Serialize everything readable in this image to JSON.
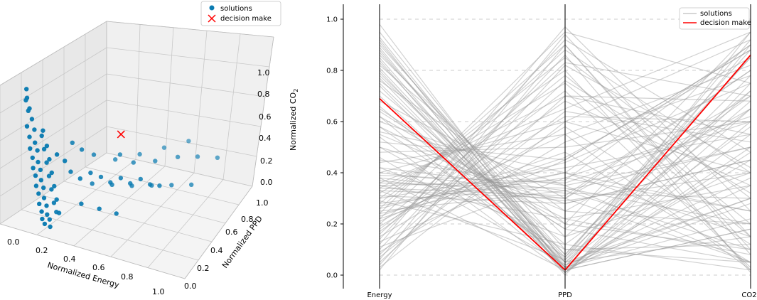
{
  "figure": {
    "left_chart": {
      "type": "scatter",
      "xlabel": "Normalized Energy",
      "ylabel": "Normalized PPD",
      "zlabel_prefix": "Normalized CO",
      "zlabel_sub": "2",
      "x_ticks": [
        "0.0",
        "0.2",
        "0.4",
        "0.6",
        "0.8",
        "1.0"
      ],
      "y_ticks": [
        "0.0",
        "0.2",
        "0.4",
        "0.6",
        "0.8",
        "1.0"
      ],
      "z_ticks": [
        "0.0",
        "0.2",
        "0.4",
        "0.6",
        "0.8",
        "1.0"
      ],
      "legend": {
        "solutions": "solutions",
        "decision": "decision make"
      },
      "colors": {
        "solutions": "#0a7bb1",
        "decision": "#ff0000"
      }
    },
    "right_chart": {
      "type": "line",
      "axes": [
        "Energy",
        "PPD",
        "CO2"
      ],
      "y_ticks": [
        "0.0",
        "0.2",
        "0.4",
        "0.6",
        "0.8",
        "1.0"
      ],
      "legend": {
        "solutions": "solutions",
        "decision": "decision make"
      },
      "colors": {
        "solutions": "#999999",
        "decision": "#ff0000"
      }
    }
  },
  "chart_data": [
    {
      "type": "scatter",
      "title": "",
      "xlabel": "Normalized Energy",
      "ylabel": "Normalized PPD",
      "zlabel": "Normalized CO2",
      "xlim": [
        0,
        1
      ],
      "ylim": [
        0,
        1
      ],
      "zlim": [
        0,
        1
      ],
      "series": [
        {
          "name": "solutions",
          "points": [
            [
              0.05,
              0.05,
              0.95
            ],
            [
              0.06,
              0.04,
              0.9
            ],
            [
              0.04,
              0.06,
              0.86
            ],
            [
              0.07,
              0.05,
              0.82
            ],
            [
              0.05,
              0.07,
              0.78
            ],
            [
              0.08,
              0.06,
              0.74
            ],
            [
              0.06,
              0.04,
              0.7
            ],
            [
              0.09,
              0.07,
              0.66
            ],
            [
              0.07,
              0.05,
              0.62
            ],
            [
              0.1,
              0.06,
              0.58
            ],
            [
              0.08,
              0.04,
              0.55
            ],
            [
              0.11,
              0.07,
              0.52
            ],
            [
              0.09,
              0.05,
              0.48
            ],
            [
              0.12,
              0.06,
              0.45
            ],
            [
              0.1,
              0.04,
              0.42
            ],
            [
              0.13,
              0.07,
              0.39
            ],
            [
              0.11,
              0.05,
              0.36
            ],
            [
              0.14,
              0.06,
              0.33
            ],
            [
              0.12,
              0.04,
              0.3
            ],
            [
              0.15,
              0.07,
              0.27
            ],
            [
              0.13,
              0.05,
              0.24
            ],
            [
              0.16,
              0.06,
              0.21
            ],
            [
              0.14,
              0.04,
              0.18
            ],
            [
              0.17,
              0.07,
              0.15
            ],
            [
              0.15,
              0.05,
              0.12
            ],
            [
              0.18,
              0.06,
              0.1
            ],
            [
              0.16,
              0.04,
              0.08
            ],
            [
              0.19,
              0.07,
              0.06
            ],
            [
              0.17,
              0.05,
              0.04
            ],
            [
              0.2,
              0.06,
              0.02
            ],
            [
              0.14,
              0.08,
              0.66
            ],
            [
              0.12,
              0.1,
              0.6
            ],
            [
              0.16,
              0.09,
              0.55
            ],
            [
              0.13,
              0.11,
              0.5
            ],
            [
              0.17,
              0.1,
              0.45
            ],
            [
              0.14,
              0.12,
              0.4
            ],
            [
              0.18,
              0.11,
              0.35
            ],
            [
              0.15,
              0.13,
              0.3
            ],
            [
              0.19,
              0.12,
              0.25
            ],
            [
              0.16,
              0.14,
              0.2
            ],
            [
              0.2,
              0.13,
              0.15
            ],
            [
              0.17,
              0.15,
              0.1
            ],
            [
              0.21,
              0.14,
              0.05
            ],
            [
              0.18,
              0.16,
              0.03
            ],
            [
              0.25,
              0.2,
              0.3
            ],
            [
              0.3,
              0.22,
              0.25
            ],
            [
              0.35,
              0.25,
              0.28
            ],
            [
              0.4,
              0.28,
              0.24
            ],
            [
              0.45,
              0.3,
              0.2
            ],
            [
              0.5,
              0.33,
              0.22
            ],
            [
              0.55,
              0.35,
              0.18
            ],
            [
              0.6,
              0.38,
              0.2
            ],
            [
              0.65,
              0.4,
              0.16
            ],
            [
              0.7,
              0.42,
              0.15
            ],
            [
              0.3,
              0.35,
              0.1
            ],
            [
              0.4,
              0.4,
              0.08
            ],
            [
              0.5,
              0.45,
              0.06
            ],
            [
              0.6,
              0.5,
              0.05
            ],
            [
              0.7,
              0.55,
              0.04
            ],
            [
              0.8,
              0.6,
              0.03
            ],
            [
              0.45,
              0.55,
              0.12
            ],
            [
              0.55,
              0.62,
              0.1
            ],
            [
              0.65,
              0.7,
              0.09
            ],
            [
              0.75,
              0.75,
              0.08
            ],
            [
              0.85,
              0.8,
              0.06
            ],
            [
              0.35,
              0.15,
              0.15
            ],
            [
              0.45,
              0.18,
              0.12
            ],
            [
              0.55,
              0.2,
              0.1
            ],
            [
              0.3,
              0.6,
              0.05
            ],
            [
              0.4,
              0.7,
              0.03
            ],
            [
              0.5,
              0.8,
              0.02
            ],
            [
              0.6,
              0.9,
              0.01
            ],
            [
              0.25,
              0.45,
              0.2
            ],
            [
              0.38,
              0.52,
              0.18
            ],
            [
              0.2,
              0.3,
              0.4
            ],
            [
              0.25,
              0.32,
              0.35
            ],
            [
              0.22,
              0.1,
              0.5
            ],
            [
              0.26,
              0.12,
              0.45
            ]
          ]
        },
        {
          "name": "decision make",
          "points": [
            [
              0.69,
              0.02,
              0.86
            ]
          ]
        }
      ]
    },
    {
      "type": "line",
      "title": "",
      "categories": [
        "Energy",
        "PPD",
        "CO2"
      ],
      "ylim": [
        0,
        1
      ],
      "series": [
        {
          "name": "solutions",
          "lines": [
            [
              0.98,
              0.02,
              0.9
            ],
            [
              0.95,
              0.05,
              0.3
            ],
            [
              0.92,
              0.01,
              0.6
            ],
            [
              0.9,
              0.1,
              0.05
            ],
            [
              0.88,
              0.03,
              0.95
            ],
            [
              0.86,
              0.15,
              0.4
            ],
            [
              0.84,
              0.0,
              0.75
            ],
            [
              0.82,
              0.2,
              0.1
            ],
            [
              0.8,
              0.02,
              0.55
            ],
            [
              0.78,
              0.08,
              0.85
            ],
            [
              0.76,
              0.25,
              0.2
            ],
            [
              0.74,
              0.01,
              0.65
            ],
            [
              0.72,
              0.12,
              0.02
            ],
            [
              0.7,
              0.03,
              0.45
            ],
            [
              0.68,
              0.3,
              0.8
            ],
            [
              0.66,
              0.05,
              0.15
            ],
            [
              0.64,
              0.18,
              0.7
            ],
            [
              0.62,
              0.02,
              0.35
            ],
            [
              0.6,
              0.35,
              0.05
            ],
            [
              0.58,
              0.07,
              0.92
            ],
            [
              0.56,
              0.4,
              0.25
            ],
            [
              0.54,
              0.01,
              0.5
            ],
            [
              0.52,
              0.45,
              0.88
            ],
            [
              0.5,
              0.1,
              0.12
            ],
            [
              0.48,
              0.5,
              0.6
            ],
            [
              0.46,
              0.04,
              0.3
            ],
            [
              0.44,
              0.55,
              0.02
            ],
            [
              0.42,
              0.15,
              0.72
            ],
            [
              0.4,
              0.6,
              0.4
            ],
            [
              0.38,
              0.02,
              0.18
            ],
            [
              0.36,
              0.65,
              0.95
            ],
            [
              0.35,
              0.22,
              0.08
            ],
            [
              0.34,
              0.7,
              0.55
            ],
            [
              0.33,
              0.06,
              0.85
            ],
            [
              0.32,
              0.75,
              0.15
            ],
            [
              0.31,
              0.28,
              0.45
            ],
            [
              0.3,
              0.8,
              0.02
            ],
            [
              0.29,
              0.12,
              0.65
            ],
            [
              0.28,
              0.85,
              0.3
            ],
            [
              0.27,
              0.4,
              0.9
            ],
            [
              0.26,
              0.9,
              0.1
            ],
            [
              0.25,
              0.33,
              0.5
            ],
            [
              0.24,
              0.95,
              0.75
            ],
            [
              0.23,
              0.48,
              0.05
            ],
            [
              0.22,
              0.88,
              0.4
            ],
            [
              0.21,
              0.55,
              0.82
            ],
            [
              0.2,
              0.78,
              0.2
            ],
            [
              0.19,
              0.62,
              0.6
            ],
            [
              0.18,
              0.72,
              0.03
            ],
            [
              0.17,
              0.68,
              0.35
            ],
            [
              0.16,
              0.83,
              0.7
            ],
            [
              0.15,
              0.58,
              0.12
            ],
            [
              0.14,
              0.92,
              0.48
            ],
            [
              0.13,
              0.45,
              0.88
            ],
            [
              0.12,
              0.97,
              0.25
            ],
            [
              0.11,
              0.38,
              0.62
            ],
            [
              0.1,
              0.86,
              0.01
            ],
            [
              0.09,
              0.52,
              0.78
            ],
            [
              0.08,
              0.76,
              0.32
            ],
            [
              0.07,
              0.64,
              0.52
            ],
            [
              0.06,
              0.94,
              0.15
            ],
            [
              0.05,
              0.7,
              0.68
            ],
            [
              0.04,
              0.82,
              0.42
            ],
            [
              0.03,
              0.6,
              0.92
            ],
            [
              0.02,
              0.9,
              0.08
            ],
            [
              0.45,
              0.35,
              0.5
            ],
            [
              0.4,
              0.32,
              0.3
            ],
            [
              0.38,
              0.3,
              0.7
            ],
            [
              0.36,
              0.34,
              0.2
            ],
            [
              0.34,
              0.31,
              0.8
            ],
            [
              0.42,
              0.33,
              0.1
            ],
            [
              0.39,
              0.36,
              0.6
            ],
            [
              0.37,
              0.29,
              0.4
            ],
            [
              0.35,
              0.37,
              0.9
            ],
            [
              0.33,
              0.3,
              0.05
            ],
            [
              0.3,
              0.42,
              0.55
            ],
            [
              0.28,
              0.38,
              0.25
            ],
            [
              0.26,
              0.44,
              0.75
            ],
            [
              0.24,
              0.4,
              0.15
            ],
            [
              0.22,
              0.46,
              0.85
            ],
            [
              0.5,
              0.28,
              0.45
            ],
            [
              0.55,
              0.25,
              0.65
            ],
            [
              0.58,
              0.22,
              0.35
            ],
            [
              0.62,
              0.2,
              0.95
            ],
            [
              0.65,
              0.18,
              0.05
            ],
            [
              0.75,
              0.05,
              0.58
            ],
            [
              0.77,
              0.03,
              0.22
            ],
            [
              0.79,
              0.07,
              0.78
            ],
            [
              0.81,
              0.04,
              0.38
            ],
            [
              0.83,
              0.06,
              0.68
            ],
            [
              0.85,
              0.02,
              0.18
            ],
            [
              0.87,
              0.08,
              0.88
            ],
            [
              0.89,
              0.01,
              0.48
            ],
            [
              0.91,
              0.05,
              0.72
            ],
            [
              0.93,
              0.03,
              0.28
            ]
          ]
        },
        {
          "name": "decision make",
          "lines": [
            [
              0.69,
              0.02,
              0.86
            ]
          ]
        }
      ]
    }
  ]
}
